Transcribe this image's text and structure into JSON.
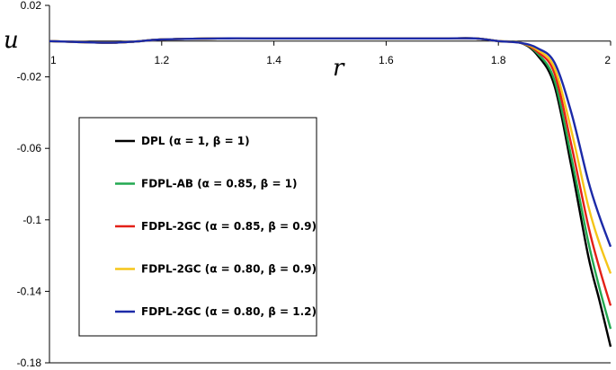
{
  "chart_data": {
    "type": "line",
    "title": "",
    "xlabel": "r",
    "ylabel": "u",
    "xlim": [
      1,
      2
    ],
    "ylim": [
      -0.18,
      0.02
    ],
    "x_ticks": [
      "1",
      "1.2",
      "1.4",
      "1.6",
      "1.8",
      "2"
    ],
    "y_ticks": [
      "0.02",
      "-0.02",
      "-0.06",
      "-0.1",
      "-0.14",
      "-0.18"
    ],
    "grid": false,
    "legend_position": "left",
    "series": [
      {
        "name": "DPL (α = 1, β = 1)",
        "color": "#000000",
        "points": [
          [
            1.0,
            0.0
          ],
          [
            1.1,
            -0.0009
          ],
          [
            1.15,
            -0.0003
          ],
          [
            1.2,
            0.0009
          ],
          [
            1.3,
            0.0015
          ],
          [
            1.4,
            0.0015
          ],
          [
            1.5,
            0.0015
          ],
          [
            1.6,
            0.0015
          ],
          [
            1.7,
            0.0015
          ],
          [
            1.76,
            0.0015
          ],
          [
            1.8,
            0.0
          ],
          [
            1.84,
            -0.001
          ],
          [
            1.87,
            -0.008
          ],
          [
            1.9,
            -0.025
          ],
          [
            1.93,
            -0.07
          ],
          [
            1.96,
            -0.12
          ],
          [
            1.98,
            -0.145
          ],
          [
            2.0,
            -0.171
          ]
        ]
      },
      {
        "name": "FDPL-AB (α = 0.85, β = 1)",
        "color": "#22a850",
        "points": [
          [
            1.0,
            0.0
          ],
          [
            1.1,
            -0.0009
          ],
          [
            1.15,
            -0.0003
          ],
          [
            1.2,
            0.0009
          ],
          [
            1.3,
            0.0015
          ],
          [
            1.4,
            0.0015
          ],
          [
            1.5,
            0.0015
          ],
          [
            1.6,
            0.0015
          ],
          [
            1.7,
            0.0015
          ],
          [
            1.76,
            0.0015
          ],
          [
            1.8,
            0.0
          ],
          [
            1.84,
            -0.001
          ],
          [
            1.87,
            -0.007
          ],
          [
            1.9,
            -0.022
          ],
          [
            1.93,
            -0.065
          ],
          [
            1.96,
            -0.112
          ],
          [
            1.98,
            -0.138
          ],
          [
            2.0,
            -0.161
          ]
        ]
      },
      {
        "name": "FDPL-2GC (α = 0.85, β = 0.9)",
        "color": "#e32018",
        "points": [
          [
            1.0,
            0.0
          ],
          [
            1.1,
            -0.0009
          ],
          [
            1.15,
            -0.0003
          ],
          [
            1.2,
            0.0009
          ],
          [
            1.3,
            0.0015
          ],
          [
            1.4,
            0.0015
          ],
          [
            1.5,
            0.0015
          ],
          [
            1.6,
            0.0015
          ],
          [
            1.7,
            0.0015
          ],
          [
            1.76,
            0.0015
          ],
          [
            1.8,
            0.0
          ],
          [
            1.84,
            -0.001
          ],
          [
            1.87,
            -0.006
          ],
          [
            1.9,
            -0.018
          ],
          [
            1.93,
            -0.058
          ],
          [
            1.96,
            -0.103
          ],
          [
            1.98,
            -0.127
          ],
          [
            2.0,
            -0.148
          ]
        ]
      },
      {
        "name": "FDPL-2GC (α = 0.80, β = 0.9)",
        "color": "#f5c518",
        "points": [
          [
            1.0,
            0.0
          ],
          [
            1.1,
            -0.0009
          ],
          [
            1.15,
            -0.0003
          ],
          [
            1.2,
            0.0009
          ],
          [
            1.3,
            0.0015
          ],
          [
            1.4,
            0.0015
          ],
          [
            1.5,
            0.0015
          ],
          [
            1.6,
            0.0015
          ],
          [
            1.7,
            0.0015
          ],
          [
            1.76,
            0.0015
          ],
          [
            1.8,
            0.0
          ],
          [
            1.84,
            -0.001
          ],
          [
            1.87,
            -0.005
          ],
          [
            1.9,
            -0.015
          ],
          [
            1.93,
            -0.05
          ],
          [
            1.96,
            -0.092
          ],
          [
            1.98,
            -0.113
          ],
          [
            2.0,
            -0.13
          ]
        ]
      },
      {
        "name": "FDPL-2GC (α = 0.80, β = 1.2)",
        "color": "#1c2aa8",
        "points": [
          [
            1.0,
            0.0
          ],
          [
            1.1,
            -0.0009
          ],
          [
            1.15,
            -0.0003
          ],
          [
            1.2,
            0.0009
          ],
          [
            1.3,
            0.0015
          ],
          [
            1.4,
            0.0015
          ],
          [
            1.5,
            0.0015
          ],
          [
            1.6,
            0.0015
          ],
          [
            1.7,
            0.0015
          ],
          [
            1.76,
            0.0015
          ],
          [
            1.8,
            0.0
          ],
          [
            1.84,
            -0.001
          ],
          [
            1.87,
            -0.004
          ],
          [
            1.9,
            -0.012
          ],
          [
            1.93,
            -0.04
          ],
          [
            1.96,
            -0.078
          ],
          [
            1.98,
            -0.098
          ],
          [
            2.0,
            -0.115
          ]
        ]
      }
    ]
  }
}
